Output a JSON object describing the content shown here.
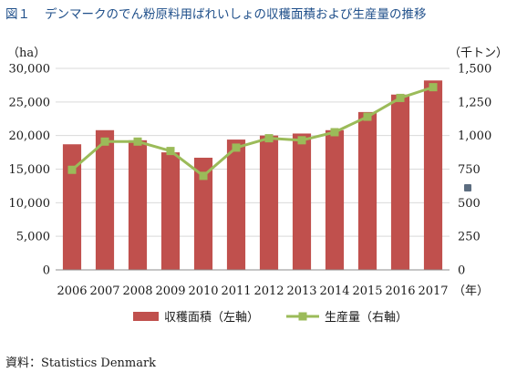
{
  "title": {
    "number": "図１",
    "text": "デンマークのでん粉原料用ばれいしょの収穫面積および生産量の推移"
  },
  "source": "資料：Statistics Denmark",
  "colors": {
    "bar": "#c0504d",
    "line": "#9bbb59",
    "title": "#1f4f8a"
  },
  "chart_data": {
    "type": "bar",
    "categories": [
      "2006",
      "2007",
      "2008",
      "2009",
      "2010",
      "2011",
      "2012",
      "2013",
      "2014",
      "2015",
      "2016",
      "2017"
    ],
    "series": [
      {
        "name": "収穫面積（左軸）",
        "type": "bar",
        "axis": "left",
        "values": [
          18700,
          20800,
          19300,
          17500,
          16700,
          19400,
          20000,
          20300,
          20800,
          23500,
          26100,
          28200
        ]
      },
      {
        "name": "生産量（右軸）",
        "type": "line",
        "axis": "right",
        "marker": "square",
        "values": [
          745,
          955,
          955,
          885,
          700,
          910,
          980,
          965,
          1025,
          1140,
          1280,
          1360
        ]
      }
    ],
    "y_left": {
      "label": "（ha）",
      "lim": [
        0,
        30000
      ],
      "ticks": [
        "0",
        "5,000",
        "10,000",
        "15,000",
        "20,000",
        "25,000",
        "30,000"
      ]
    },
    "y_right": {
      "label": "（千トン）",
      "lim": [
        0,
        1500
      ],
      "ticks": [
        "0",
        "250",
        "500",
        "750",
        "1,000",
        "1,250",
        "1,500"
      ]
    },
    "x_unit": "（年）",
    "grid": true,
    "legend_position": "bottom"
  }
}
